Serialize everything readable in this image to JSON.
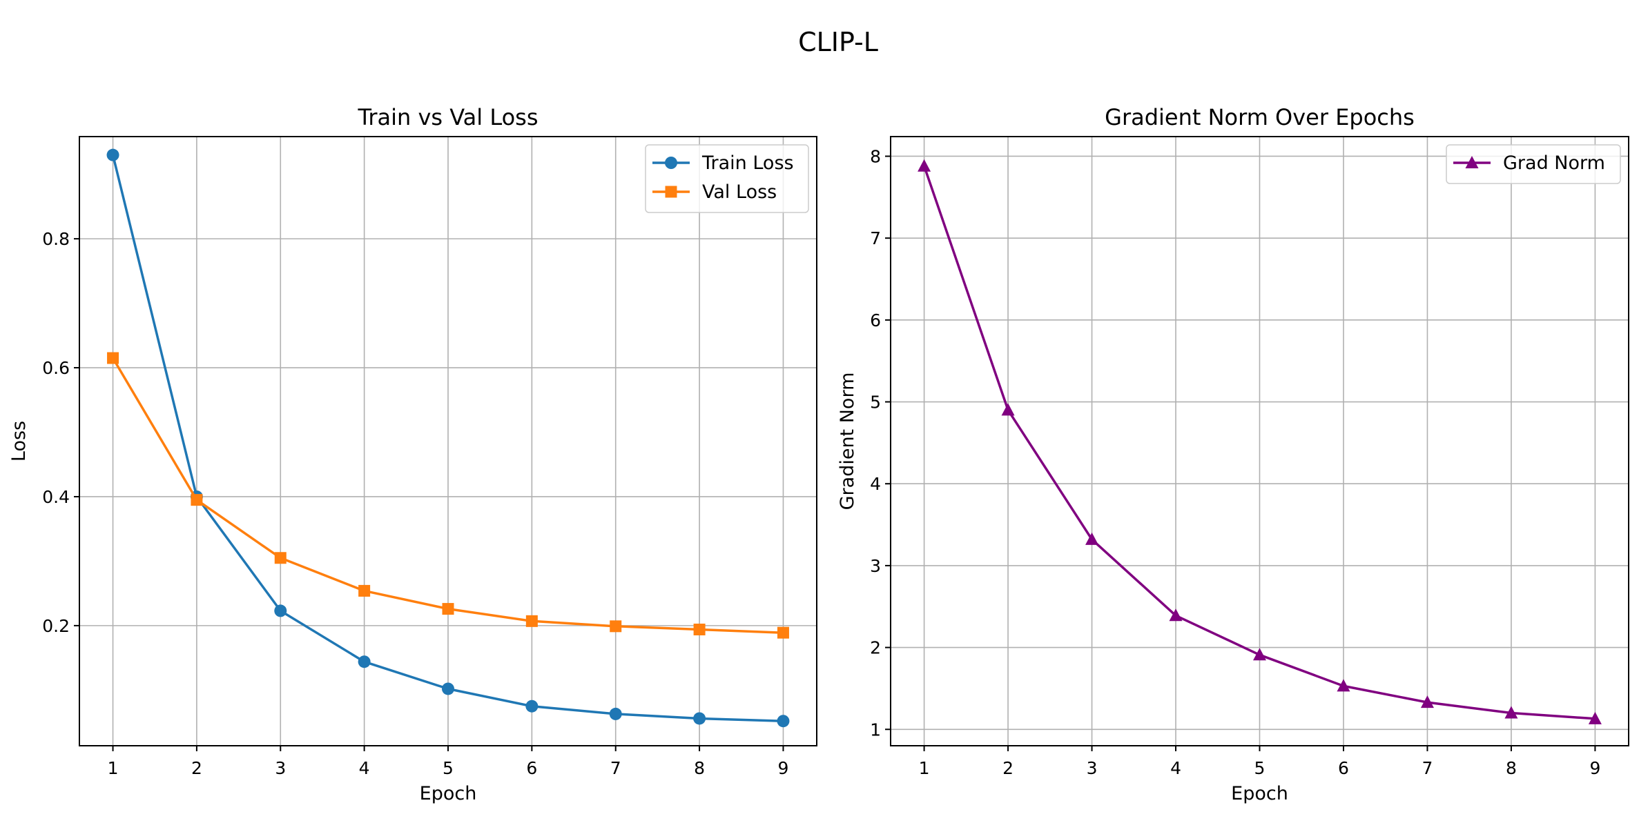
{
  "suptitle": "CLIP-L",
  "chart_data": [
    {
      "type": "line",
      "title": "Train vs Val Loss",
      "xlabel": "Epoch",
      "ylabel": "Loss",
      "x": [
        1,
        2,
        3,
        4,
        5,
        6,
        7,
        8,
        9
      ],
      "xlim": [
        0.6,
        9.4
      ],
      "ylim": [
        0.0137,
        0.9585
      ],
      "xticks": [
        1,
        2,
        3,
        4,
        5,
        6,
        7,
        8,
        9
      ],
      "yticks": [
        0.2,
        0.4,
        0.6,
        0.8
      ],
      "ytick_labels": [
        "0.2",
        "0.4",
        "0.6",
        "0.8"
      ],
      "grid": true,
      "legend_position": "top-right",
      "series": [
        {
          "name": "Train Loss",
          "color": "#1f77b4",
          "marker": "circle",
          "values": [
            0.93,
            0.4,
            0.223,
            0.144,
            0.102,
            0.075,
            0.063,
            0.056,
            0.052
          ]
        },
        {
          "name": "Val Loss",
          "color": "#ff7f0e",
          "marker": "square",
          "values": [
            0.615,
            0.395,
            0.305,
            0.254,
            0.226,
            0.207,
            0.199,
            0.194,
            0.189
          ]
        }
      ]
    },
    {
      "type": "line",
      "title": "Gradient Norm Over Epochs",
      "xlabel": "Epoch",
      "ylabel": "Gradient Norm",
      "x": [
        1,
        2,
        3,
        4,
        5,
        6,
        7,
        8,
        9
      ],
      "xlim": [
        0.6,
        9.4
      ],
      "ylim": [
        0.8,
        8.24
      ],
      "xticks": [
        1,
        2,
        3,
        4,
        5,
        6,
        7,
        8,
        9
      ],
      "yticks": [
        1,
        2,
        3,
        4,
        5,
        6,
        7,
        8
      ],
      "ytick_labels": [
        "1",
        "2",
        "3",
        "4",
        "5",
        "6",
        "7",
        "8"
      ],
      "grid": true,
      "legend_position": "top-right",
      "series": [
        {
          "name": "Grad Norm",
          "color": "#800080",
          "marker": "triangle",
          "values": [
            7.88,
            4.9,
            3.32,
            2.39,
            1.91,
            1.53,
            1.33,
            1.2,
            1.13
          ]
        }
      ]
    }
  ]
}
